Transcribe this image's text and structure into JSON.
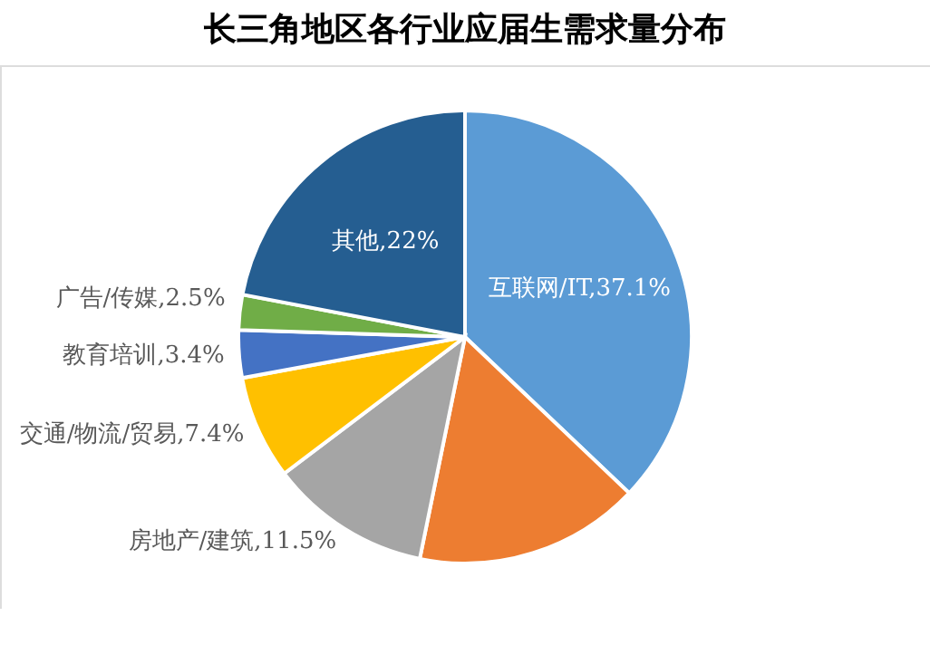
{
  "chart_data": {
    "type": "pie",
    "title": "长三角地区各行业应届生需求量分布",
    "categories": [
      "互联网/IT",
      null,
      "房地产/建筑",
      "交通/物流/贸易",
      "教育培训",
      "广告/传媒",
      "其他"
    ],
    "values": [
      37.1,
      16.1,
      11.5,
      7.4,
      3.4,
      2.5,
      22
    ],
    "value_labels": [
      "37.1%",
      null,
      "11.5%",
      "7.4%",
      "3.4%",
      "2.5%",
      "22%"
    ],
    "colors": [
      "#5b9bd5",
      "#ed7d31",
      "#a5a5a5",
      "#ffc000",
      "#4472c4",
      "#70ad47",
      "#255e91"
    ],
    "legend": false
  }
}
